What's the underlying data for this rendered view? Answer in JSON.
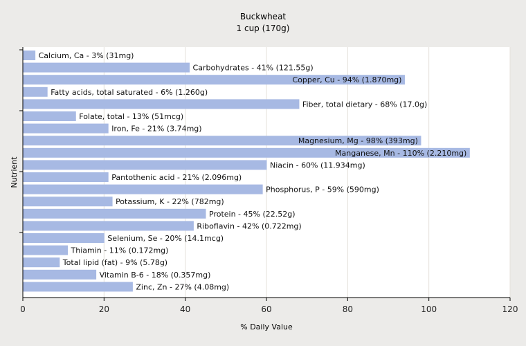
{
  "chart_data": {
    "type": "bar",
    "orientation": "horizontal",
    "title": "Buckwheat",
    "subtitle": "1 cup (170g)",
    "xlabel": "% Daily Value",
    "ylabel": "Nutrient",
    "xlim": [
      0,
      120
    ],
    "xticks": [
      "0",
      "20",
      "40",
      "60",
      "80",
      "100",
      "120"
    ],
    "grid": true,
    "legend": "none",
    "bar_color": "#a7b9e3",
    "categories": [
      "Calcium, Ca",
      "Carbohydrates",
      "Copper, Cu",
      "Fatty acids, total saturated",
      "Fiber, total dietary",
      "Folate, total",
      "Iron, Fe",
      "Magnesium, Mg",
      "Manganese, Mn",
      "Niacin",
      "Pantothenic acid",
      "Phosphorus, P",
      "Potassium, K",
      "Protein",
      "Riboflavin",
      "Selenium, Se",
      "Thiamin",
      "Total lipid (fat)",
      "Vitamin B-6",
      "Zinc, Zn"
    ],
    "values": [
      3,
      41,
      94,
      6,
      68,
      13,
      21,
      98,
      110,
      60,
      21,
      59,
      22,
      45,
      42,
      20,
      11,
      9,
      18,
      27
    ],
    "labels": [
      "Calcium, Ca - 3% (31mg)",
      "Carbohydrates - 41% (121.55g)",
      "Copper, Cu - 94% (1.870mg)",
      "Fatty acids, total saturated - 6% (1.260g)",
      "Fiber, total dietary - 68% (17.0g)",
      "Folate, total - 13% (51mcg)",
      "Iron, Fe - 21% (3.74mg)",
      "Magnesium, Mg - 98% (393mg)",
      "Manganese, Mn - 110% (2.210mg)",
      "Niacin - 60% (11.934mg)",
      "Pantothenic acid - 21% (2.096mg)",
      "Phosphorus, P - 59% (590mg)",
      "Potassium, K - 22% (782mg)",
      "Protein - 45% (22.52g)",
      "Riboflavin - 42% (0.722mg)",
      "Selenium, Se - 20% (14.1mcg)",
      "Thiamin - 11% (0.172mg)",
      "Total lipid (fat) - 9% (5.78g)",
      "Vitamin B-6 - 18% (0.357mg)",
      "Zinc, Zn - 27% (4.08mg)"
    ]
  }
}
